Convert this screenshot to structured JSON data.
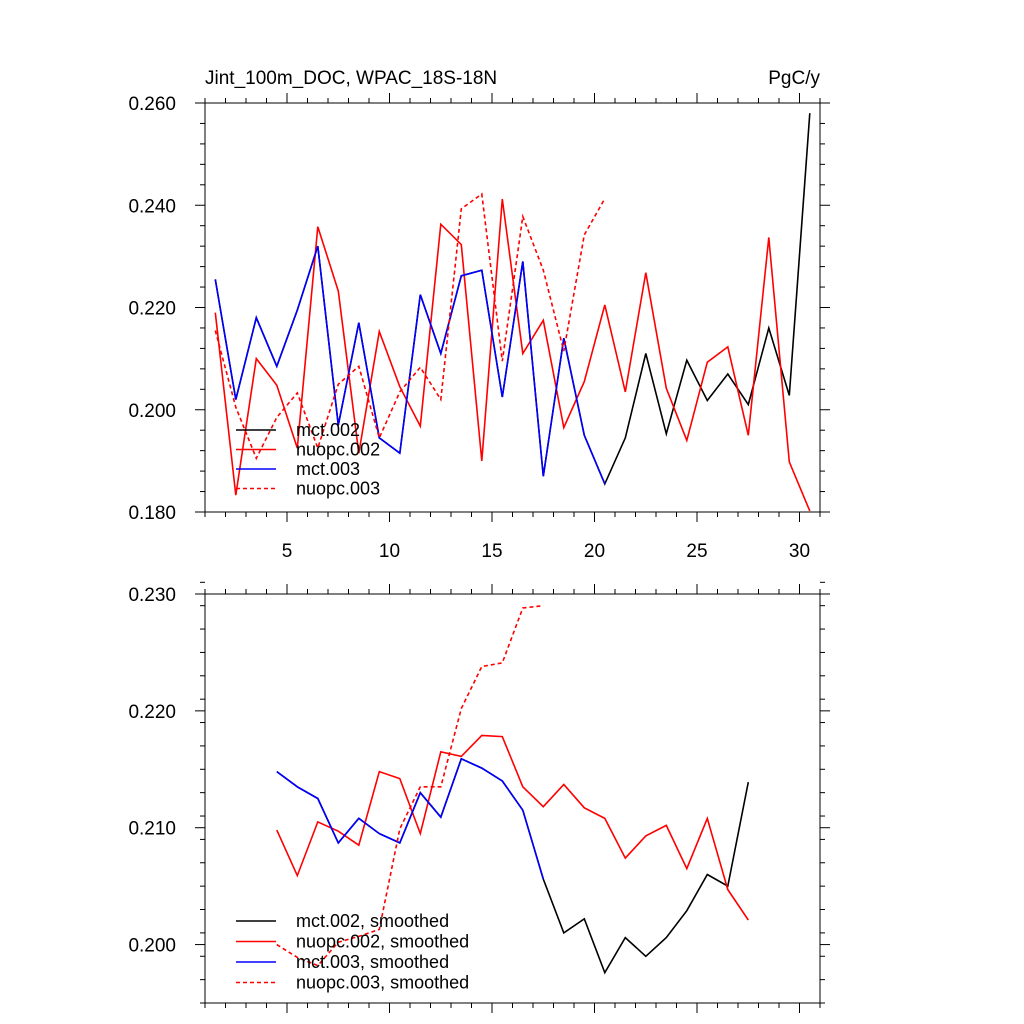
{
  "chart_data": [
    {
      "type": "line",
      "title": "Jint_100m_DOC, WPAC_18S-18N",
      "units": "PgC/y",
      "xlabel": "",
      "ylabel": "",
      "xlim": [
        1,
        31
      ],
      "ylim": [
        0.18,
        0.26
      ],
      "xticks": [
        5,
        10,
        15,
        20,
        25,
        30
      ],
      "yticks": [
        0.18,
        0.2,
        0.22,
        0.24,
        0.26
      ],
      "ytick_labels": [
        "0.180",
        "0.200",
        "0.220",
        "0.240",
        "0.260"
      ],
      "legend_position": "bottom-left",
      "series": [
        {
          "name": "mct.002",
          "color": "#000000",
          "dash": "solid",
          "x": [
            1.5,
            2.5,
            3.5,
            4.5,
            5.5,
            6.5,
            7.5,
            8.5,
            9.5,
            10.5,
            11.5,
            12.5,
            13.5,
            14.5,
            15.5,
            16.5,
            17.5,
            18.5,
            19.5,
            20.5,
            21.5,
            22.5,
            23.5,
            24.5,
            25.5,
            26.5,
            27.5,
            28.5,
            29.5,
            30.5
          ],
          "values": [
            0.2255,
            0.202,
            0.218,
            0.2085,
            0.2195,
            0.232,
            0.197,
            0.217,
            0.1945,
            0.1915,
            0.2225,
            0.211,
            0.2262,
            0.2273,
            0.2025,
            0.229,
            0.187,
            0.214,
            0.195,
            0.1855,
            0.1945,
            0.211,
            0.1953,
            0.2097,
            0.2018,
            0.207,
            0.201,
            0.216,
            0.2028,
            0.258
          ]
        },
        {
          "name": "nuopc.002",
          "color": "#ff0000",
          "dash": "solid",
          "x": [
            1.5,
            2.5,
            3.5,
            4.5,
            5.5,
            6.5,
            7.5,
            8.5,
            9.5,
            10.5,
            11.5,
            12.5,
            13.5,
            14.5,
            15.5,
            16.5,
            17.5,
            18.5,
            19.5,
            20.5,
            21.5,
            22.5,
            23.5,
            24.5,
            25.5,
            26.5,
            27.5,
            28.5,
            29.5,
            30.5
          ],
          "values": [
            0.219,
            0.1833,
            0.21,
            0.2048,
            0.1925,
            0.2358,
            0.2232,
            0.1915,
            0.2153,
            0.2045,
            0.1968,
            0.2363,
            0.2323,
            0.19,
            0.2412,
            0.211,
            0.2175,
            0.1965,
            0.2055,
            0.2205,
            0.2035,
            0.2268,
            0.2042,
            0.194,
            0.2093,
            0.2123,
            0.195,
            0.2337,
            0.1898,
            0.1802
          ]
        },
        {
          "name": "mct.003",
          "color": "#0000ff",
          "dash": "solid",
          "x": [
            1.5,
            2.5,
            3.5,
            4.5,
            5.5,
            6.5,
            7.5,
            8.5,
            9.5,
            10.5,
            11.5,
            12.5,
            13.5,
            14.5,
            15.5,
            16.5,
            17.5,
            18.5,
            19.5,
            20.5
          ],
          "values": [
            0.2255,
            0.202,
            0.218,
            0.2085,
            0.2195,
            0.232,
            0.197,
            0.217,
            0.1945,
            0.1915,
            0.2225,
            0.211,
            0.2262,
            0.2273,
            0.2025,
            0.229,
            0.187,
            0.214,
            0.195,
            0.1855
          ]
        },
        {
          "name": "nuopc.003",
          "color": "#ff0000",
          "dash": "dashed",
          "x": [
            1.5,
            2.5,
            3.5,
            4.5,
            5.5,
            6.5,
            7.5,
            8.5,
            9.5,
            10.5,
            11.5,
            12.5,
            13.5,
            14.5,
            15.5,
            16.5,
            17.5,
            18.5,
            19.5,
            20.5
          ],
          "values": [
            0.2155,
            0.2005,
            0.1905,
            0.1985,
            0.2033,
            0.1925,
            0.205,
            0.2085,
            0.1945,
            0.2035,
            0.2083,
            0.202,
            0.2393,
            0.2422,
            0.2095,
            0.2378,
            0.2273,
            0.2115,
            0.2342,
            0.2413
          ]
        }
      ]
    },
    {
      "type": "line",
      "title": "",
      "units": "",
      "xlabel": "",
      "ylabel": "",
      "xlim": [
        1,
        31
      ],
      "ylim": [
        0.195,
        0.23
      ],
      "xticks": [
        5,
        10,
        15,
        20,
        25,
        30
      ],
      "yticks": [
        0.2,
        0.21,
        0.22,
        0.23
      ],
      "ytick_labels": [
        "0.200",
        "0.210",
        "0.220",
        "0.230"
      ],
      "legend_position": "bottom-left",
      "series": [
        {
          "name": "mct.002, smoothed",
          "color": "#000000",
          "dash": "solid",
          "x": [
            4.5,
            5.5,
            6.5,
            7.5,
            8.5,
            9.5,
            10.5,
            11.5,
            12.5,
            13.5,
            14.5,
            15.5,
            16.5,
            17.5,
            18.5,
            19.5,
            20.5,
            21.5,
            22.5,
            23.5,
            24.5,
            25.5,
            26.5,
            27.5
          ],
          "values": [
            0.2148,
            0.2135,
            0.2125,
            0.2087,
            0.2108,
            0.2095,
            0.2087,
            0.213,
            0.2109,
            0.2159,
            0.2151,
            0.214,
            0.2115,
            0.2056,
            0.201,
            0.2022,
            0.1976,
            0.2006,
            0.199,
            0.2006,
            0.2029,
            0.206,
            0.205,
            0.2139
          ]
        },
        {
          "name": "nuopc.002, smoothed",
          "color": "#ff0000",
          "dash": "solid",
          "x": [
            4.5,
            5.5,
            6.5,
            7.5,
            8.5,
            9.5,
            10.5,
            11.5,
            12.5,
            13.5,
            14.5,
            15.5,
            16.5,
            17.5,
            18.5,
            19.5,
            20.5,
            21.5,
            22.5,
            23.5,
            24.5,
            25.5,
            26.5,
            27.5
          ],
          "values": [
            0.2098,
            0.2059,
            0.2105,
            0.2097,
            0.2085,
            0.2148,
            0.2142,
            0.2095,
            0.2165,
            0.2161,
            0.2179,
            0.2178,
            0.2135,
            0.2118,
            0.2137,
            0.2117,
            0.2108,
            0.2074,
            0.2093,
            0.2102,
            0.2065,
            0.2108,
            0.2047,
            0.2021
          ]
        },
        {
          "name": "mct.003, smoothed",
          "color": "#0000ff",
          "dash": "solid",
          "x": [
            4.5,
            5.5,
            6.5,
            7.5,
            8.5,
            9.5,
            10.5,
            11.5,
            12.5,
            13.5,
            14.5,
            15.5,
            16.5,
            17.5
          ],
          "values": [
            0.2148,
            0.2135,
            0.2125,
            0.2087,
            0.2108,
            0.2095,
            0.2087,
            0.213,
            0.2109,
            0.2159,
            0.2151,
            0.214,
            0.2115,
            0.2056
          ]
        },
        {
          "name": "nuopc.003, smoothed",
          "color": "#ff0000",
          "dash": "dashed",
          "x": [
            4.5,
            5.5,
            6.5,
            7.5,
            8.5,
            9.5,
            10.5,
            11.5,
            12.5,
            13.5,
            14.5,
            15.5,
            16.5,
            17.5
          ],
          "values": [
            0.2,
            0.1989,
            0.1982,
            0.2002,
            0.2007,
            0.2013,
            0.2099,
            0.2135,
            0.2135,
            0.2202,
            0.2238,
            0.2241,
            0.2288,
            0.229
          ]
        }
      ]
    }
  ]
}
